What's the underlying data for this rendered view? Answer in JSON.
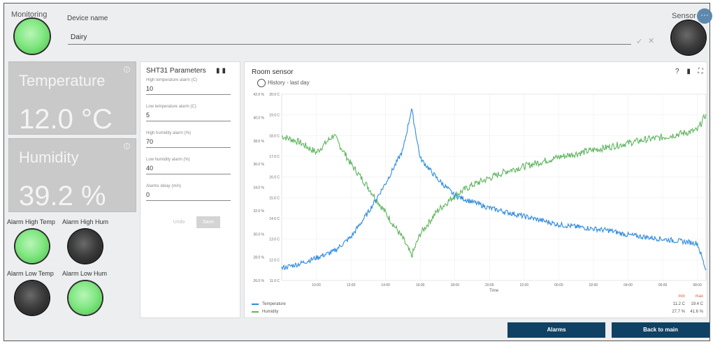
{
  "header": {
    "monitoring_label": "Monitoring",
    "device_name_label": "Device name",
    "device_name_value": "Dairy",
    "sensor_error_label": "Sensor Err",
    "check_icon": "✓",
    "close_icon": "✕",
    "more_icon": "···"
  },
  "tiles": {
    "temperature": {
      "label": "Temperature",
      "value": "12.0 °C"
    },
    "humidity": {
      "label": "Humidity",
      "value": "39.2 %"
    }
  },
  "alarms": [
    {
      "label": "Alarm High Temp",
      "state": "on"
    },
    {
      "label": "Alarm High Hum",
      "state": "off"
    },
    {
      "label": "Alarm Low Temp",
      "state": "off"
    },
    {
      "label": "Alarm Low Hum",
      "state": "on"
    }
  ],
  "params": {
    "title": "SHT31 Parameters",
    "fields": [
      {
        "label": "High temperature alarm (C)",
        "value": "10"
      },
      {
        "label": "Low temperature alarm (C)",
        "value": "5"
      },
      {
        "label": "High humidity alarm (%)",
        "value": "70"
      },
      {
        "label": "Low humidity alarm (%)",
        "value": "40"
      },
      {
        "label": "Alarms delay (min)",
        "value": "0"
      }
    ],
    "undo_label": "Undo",
    "save_label": "Save"
  },
  "chart_panel": {
    "title": "Room sensor",
    "subtitle": "History - last day",
    "icons": "? ▮ ⛶",
    "minmax": {
      "min_header": "min",
      "max_header": "max",
      "temperature_min": "11.2 C",
      "temperature_max": "19.4 C",
      "humidity_min": "27.7 %",
      "humidity_max": "41.6 %"
    }
  },
  "colors": {
    "temperature": "#2f8be0",
    "humidity": "#5fb55f",
    "led_on": "#84e884",
    "led_off": "#333333",
    "button_bg": "#0e4163",
    "tile_bg": "#c9c9c9"
  },
  "chart_data": {
    "type": "line",
    "xlabel": "Time",
    "x": [
      "08:00",
      "09:00",
      "10:00",
      "11:00",
      "12:00",
      "13:00",
      "14:00",
      "15:00",
      "15:30",
      "16:00",
      "17:00",
      "18:00",
      "19:00",
      "20:00",
      "21:00",
      "22:00",
      "23:00",
      "00:00",
      "01:00",
      "02:00",
      "03:00",
      "04:00",
      "05:00",
      "06:00",
      "07:00",
      "08:00",
      "08:30"
    ],
    "x_tick_labels": [
      "10:00",
      "12:00",
      "14:00",
      "16:00",
      "18:00",
      "20:00",
      "22:00",
      "00:00",
      "02:00",
      "04:00",
      "06:00",
      "08:00"
    ],
    "y_left_ticks": [
      "11.0 C",
      "12.0 C",
      "13.0 C",
      "14.0 C",
      "15.0 C",
      "16.0 C",
      "17.0 C",
      "18.0 C",
      "19.0 C",
      "20.0 C"
    ],
    "y_right_ticks": [
      "26.0 %",
      "28.0 %",
      "30.0 %",
      "32.0 %",
      "34.0 %",
      "36.0 %",
      "38.0 %",
      "40.0 %",
      "42.0 %"
    ],
    "ylim_temperature": [
      11,
      20
    ],
    "ylim_humidity": [
      26,
      42
    ],
    "series": [
      {
        "name": "Temperature",
        "axis": "temperature",
        "values": [
          11.6,
          11.8,
          12.1,
          12.4,
          13.1,
          14.3,
          15.7,
          17.3,
          19.3,
          16.9,
          15.9,
          15.1,
          14.8,
          14.5,
          14.3,
          14.1,
          13.9,
          13.7,
          13.6,
          13.5,
          13.4,
          13.2,
          13.1,
          13.0,
          12.9,
          12.8,
          11.5
        ]
      },
      {
        "name": "Humidity",
        "axis": "humidity",
        "values": [
          38.4,
          37.9,
          37.0,
          38.5,
          36.0,
          34.0,
          31.8,
          29.6,
          28.1,
          30.0,
          32.0,
          33.3,
          34.2,
          34.8,
          35.4,
          35.8,
          36.2,
          36.6,
          36.9,
          37.2,
          37.5,
          37.8,
          38.1,
          38.3,
          38.6,
          38.9,
          40.3
        ]
      }
    ]
  },
  "footer": {
    "alarms_label": "Alarms",
    "back_label": "Back to main"
  }
}
